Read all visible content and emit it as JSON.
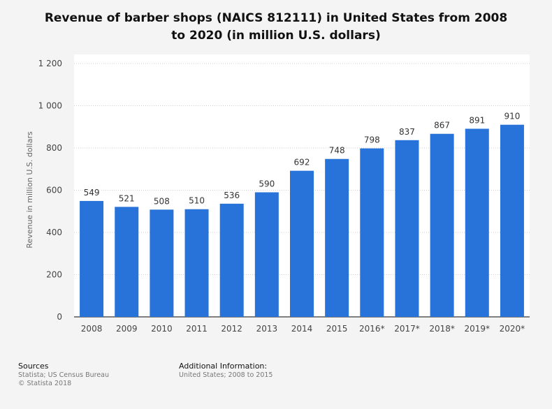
{
  "title_line1": "Revenue of barber shops (NAICS 812111) in United States from 2008",
  "title_line2": "to 2020 (in million U.S. dollars)",
  "footer": {
    "sources_heading": "Sources",
    "sources_line1": "Statista; US Census Bureau",
    "sources_line2": "© Statista 2018",
    "info_heading": "Additional Information:",
    "info_line1": "United States; 2008 to 2015"
  },
  "chart_data": {
    "type": "bar",
    "title": "Revenue of barber shops (NAICS 812111) in United States from 2008 to 2020 (in million U.S. dollars)",
    "xlabel": "",
    "ylabel": "Revenue in million U.S. dollars",
    "categories": [
      "2008",
      "2009",
      "2010",
      "2011",
      "2012",
      "2013",
      "2014",
      "2015",
      "2016*",
      "2017*",
      "2018*",
      "2019*",
      "2020*"
    ],
    "values": [
      549,
      521,
      508,
      510,
      536,
      590,
      692,
      748,
      798,
      837,
      867,
      891,
      910
    ],
    "ylim": [
      0,
      1200
    ],
    "yticks": [
      0,
      200,
      400,
      600,
      800,
      1000,
      1200
    ],
    "ytick_labels": [
      "0",
      "200",
      "400",
      "600",
      "800",
      "1 000",
      "1 200"
    ],
    "bar_color": "#2873d9",
    "grid": true
  }
}
